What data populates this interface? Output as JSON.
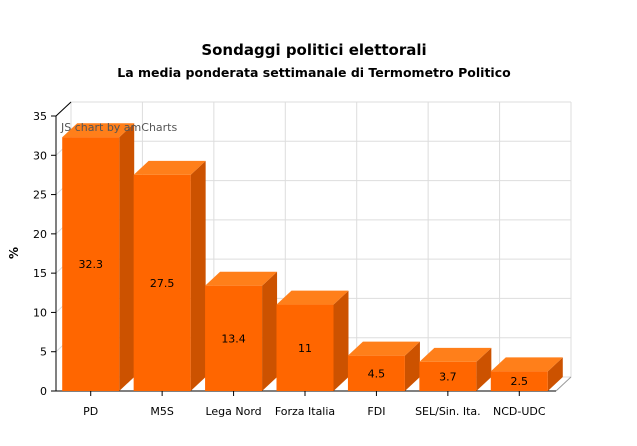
{
  "chart_data": {
    "type": "bar",
    "title": "Sondaggi politici elettorali",
    "subtitle": "La media ponderata settimanale di Termometro Politico",
    "ylabel": "%",
    "xlabel": "",
    "ylim": [
      0,
      35
    ],
    "yticks": [
      0,
      5,
      10,
      15,
      20,
      25,
      30,
      35
    ],
    "categories": [
      "PD",
      "M5S",
      "Lega Nord",
      "Forza Italia",
      "FDI",
      "SEL/Sin. Ita.",
      "NCD-UDC"
    ],
    "values": [
      32.3,
      27.5,
      13.4,
      11,
      4.5,
      3.7,
      2.5
    ],
    "value_labels": [
      "32.3",
      "27.5",
      "13.4",
      "11",
      "4.5",
      "3.7",
      "2.5"
    ],
    "grid": true,
    "three_d": true,
    "colors": {
      "front": "#ff6600",
      "top": "#ff7f1a",
      "side": "#cc5200",
      "grid": "#dddddd",
      "axis": "#999999"
    }
  },
  "watermark": "JS chart by amCharts"
}
